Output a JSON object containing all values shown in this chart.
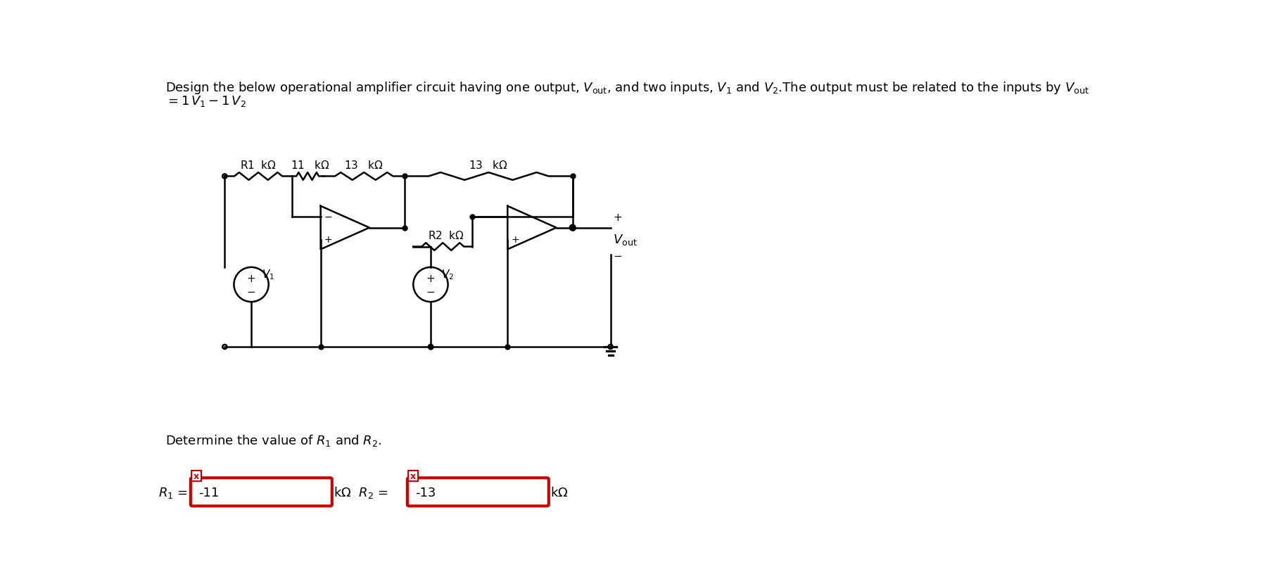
{
  "title_line1": "Design the below operational amplifier circuit having one output, $V_{\\mathrm{out}}$, and two inputs, $V_1$ and $V_2$.The output must be related to the inputs by $V_{\\mathrm{out}}$",
  "title_line2": "$= 1\\,V_1 - 1\\,V_2$",
  "determine_text": "Determine the value of $R_1$ and $R_2$.",
  "r1_value": "-11",
  "r2_value": "-13",
  "bg_color": "#ffffff",
  "line_color": "#000000",
  "red_color": "#cc0000",
  "text_color": "#000000",
  "res_11_label": "11   k",
  "res_13a_label": "13   k",
  "res_13b_label": "13   k",
  "r1_label": "R1  k",
  "r2_label": "R2  k"
}
